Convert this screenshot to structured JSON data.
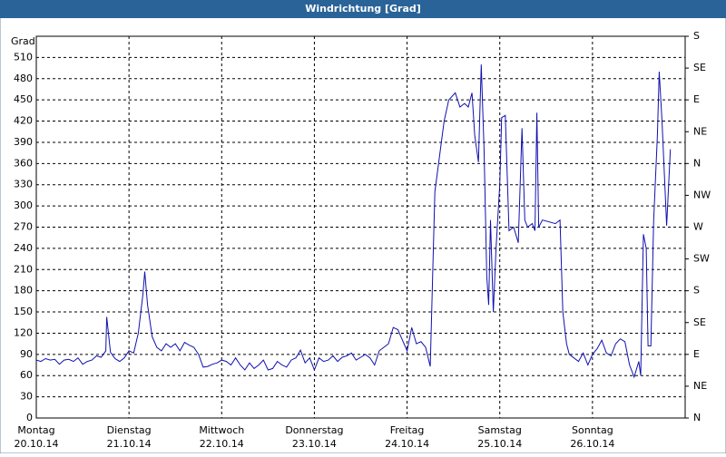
{
  "chart_data": {
    "type": "line",
    "title": "Windrichtung [Grad]",
    "y_label": "Grad",
    "color": "#1010b0",
    "grid": true,
    "xlim": [
      0,
      7
    ],
    "xticks": [
      {
        "value": 0,
        "label": "Montag"
      },
      {
        "value": 1,
        "label": "Dienstag"
      },
      {
        "value": 2,
        "label": "Mittwoch"
      },
      {
        "value": 3,
        "label": "Donnerstag"
      },
      {
        "value": 4,
        "label": "Freitag"
      },
      {
        "value": 5,
        "label": "Samstag"
      },
      {
        "value": 6,
        "label": "Sonntag"
      }
    ],
    "xtick_sublabels": [
      "20.10.14",
      "21.10.14",
      "22.10.14",
      "23.10.14",
      "24.10.14",
      "25.10.14",
      "26.10.14"
    ],
    "ylim": [
      0,
      540
    ],
    "yticks": [
      0,
      30,
      60,
      90,
      120,
      150,
      180,
      210,
      240,
      270,
      300,
      330,
      360,
      390,
      420,
      450,
      480,
      510
    ],
    "y2lim": [
      0,
      540
    ],
    "y2ticks": [
      {
        "value": 0,
        "label": "N"
      },
      {
        "value": 45,
        "label": "NE"
      },
      {
        "value": 90,
        "label": "E"
      },
      {
        "value": 135,
        "label": "SE"
      },
      {
        "value": 180,
        "label": "S"
      },
      {
        "value": 225,
        "label": "SW"
      },
      {
        "value": 270,
        "label": "W"
      },
      {
        "value": 315,
        "label": "NW"
      },
      {
        "value": 360,
        "label": "N"
      },
      {
        "value": 405,
        "label": "NE"
      },
      {
        "value": 450,
        "label": "E"
      },
      {
        "value": 495,
        "label": "SE"
      },
      {
        "value": 540,
        "label": "S"
      }
    ],
    "x": [
      0,
      0.05,
      0.1,
      0.15,
      0.2,
      0.25,
      0.3,
      0.35,
      0.4,
      0.45,
      0.5,
      0.55,
      0.6,
      0.65,
      0.7,
      0.75,
      0.76,
      0.8,
      0.85,
      0.9,
      0.95,
      1.0,
      1.05,
      1.1,
      1.15,
      1.17,
      1.2,
      1.25,
      1.3,
      1.35,
      1.4,
      1.45,
      1.5,
      1.55,
      1.6,
      1.65,
      1.7,
      1.75,
      1.8,
      1.85,
      1.9,
      1.95,
      2.0,
      2.05,
      2.1,
      2.15,
      2.2,
      2.25,
      2.3,
      2.35,
      2.4,
      2.45,
      2.5,
      2.55,
      2.6,
      2.65,
      2.7,
      2.75,
      2.8,
      2.85,
      2.9,
      2.95,
      3.0,
      3.05,
      3.1,
      3.15,
      3.2,
      3.25,
      3.3,
      3.35,
      3.4,
      3.45,
      3.5,
      3.55,
      3.6,
      3.65,
      3.7,
      3.75,
      3.8,
      3.85,
      3.9,
      3.95,
      4.0,
      4.05,
      4.1,
      4.15,
      4.2,
      4.25,
      4.3,
      4.35,
      4.4,
      4.45,
      4.52,
      4.57,
      4.62,
      4.66,
      4.7,
      4.73,
      4.77,
      4.8,
      4.83,
      4.86,
      4.88,
      4.9,
      4.93,
      4.96,
      5.0,
      5.02,
      5.06,
      5.1,
      5.15,
      5.2,
      5.24,
      5.27,
      5.3,
      5.35,
      5.38,
      5.4,
      5.42,
      5.46,
      5.6,
      5.65,
      5.68,
      5.72,
      5.75,
      5.8,
      5.85,
      5.9,
      5.95,
      6.0,
      6.05,
      6.1,
      6.15,
      6.2,
      6.25,
      6.3,
      6.35,
      6.4,
      6.45,
      6.5,
      6.52,
      6.55,
      6.58,
      6.6,
      6.63,
      6.66,
      6.7,
      6.72,
      6.75,
      6.8,
      6.84
    ],
    "values": [
      82,
      80,
      84,
      82,
      83,
      76,
      82,
      83,
      80,
      85,
      76,
      80,
      82,
      88,
      86,
      95,
      143,
      93,
      84,
      80,
      85,
      95,
      92,
      120,
      175,
      207,
      160,
      115,
      100,
      95,
      105,
      100,
      105,
      95,
      107,
      103,
      100,
      90,
      72,
      73,
      76,
      78,
      82,
      80,
      75,
      85,
      75,
      68,
      78,
      70,
      75,
      82,
      68,
      70,
      80,
      75,
      72,
      82,
      85,
      96,
      78,
      85,
      68,
      85,
      80,
      82,
      88,
      80,
      86,
      88,
      92,
      82,
      86,
      90,
      85,
      75,
      95,
      100,
      105,
      128,
      125,
      110,
      95,
      128,
      105,
      108,
      100,
      73,
      320,
      370,
      420,
      450,
      460,
      440,
      445,
      440,
      460,
      400,
      362,
      500,
      380,
      200,
      160,
      280,
      150,
      240,
      330,
      425,
      428,
      265,
      270,
      248,
      410,
      280,
      270,
      275,
      265,
      432,
      270,
      280,
      275,
      280,
      150,
      105,
      90,
      85,
      80,
      92,
      75,
      90,
      98,
      110,
      92,
      88,
      105,
      112,
      108,
      75,
      58,
      80,
      60,
      260,
      240,
      102,
      102,
      280,
      400,
      490,
      420,
      272,
      380
    ]
  }
}
